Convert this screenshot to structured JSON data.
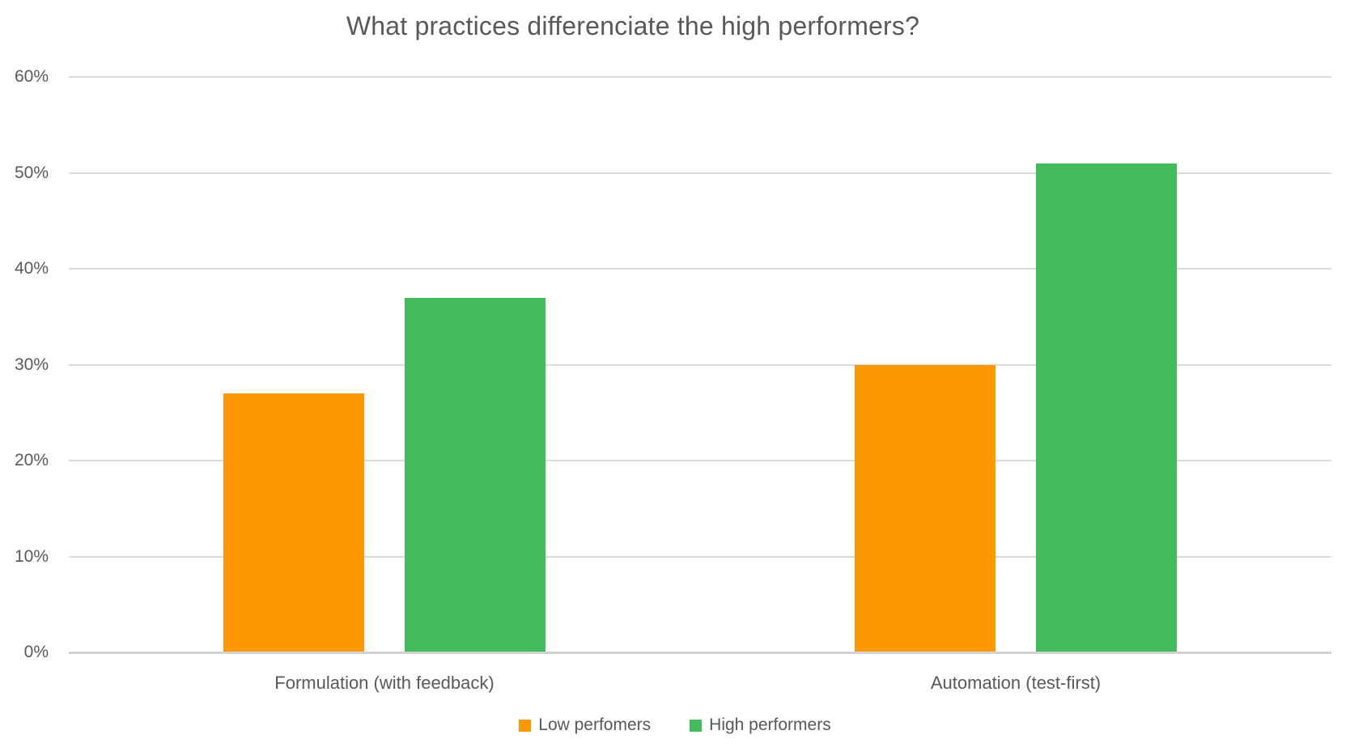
{
  "chart_data": {
    "type": "bar",
    "title": "What practices differenciate the high performers?",
    "categories": [
      "Formulation (with feedback)",
      "Automation (test-first)"
    ],
    "series": [
      {
        "name": "Low perfomers",
        "color": "#FC9804",
        "values": [
          27,
          30
        ]
      },
      {
        "name": "High performers",
        "color": "#44BC5E",
        "values": [
          37,
          51
        ]
      }
    ],
    "xlabel": "",
    "ylabel": "",
    "ylim": [
      0,
      60
    ],
    "yticks": [
      0,
      10,
      20,
      30,
      40,
      50,
      60
    ],
    "ytick_labels": [
      "0%",
      "10%",
      "20%",
      "30%",
      "40%",
      "50%",
      "60%"
    ],
    "grid": true,
    "legend_position": "bottom",
    "colors": {
      "grid": "#DCDCDC",
      "axis": "#D2D2D2",
      "text": "#595959"
    }
  }
}
